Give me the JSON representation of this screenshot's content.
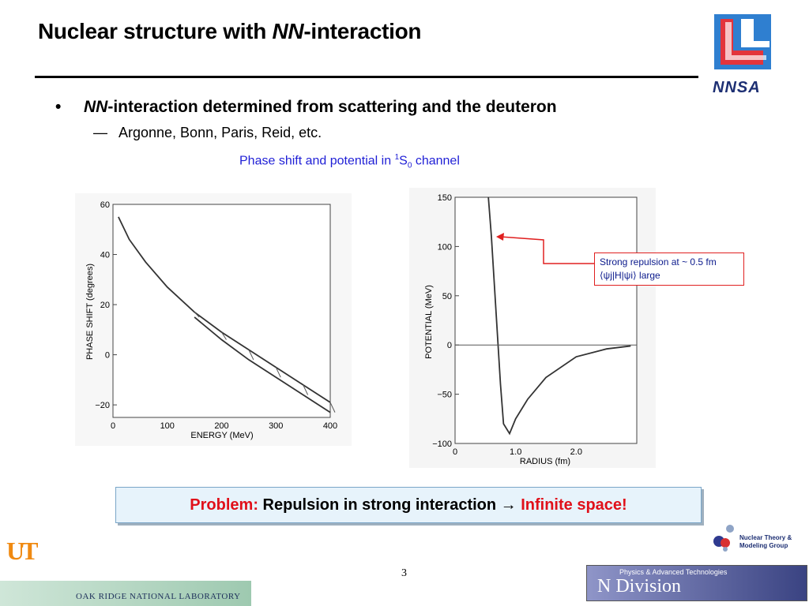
{
  "slide": {
    "title_pre": "Nuclear structure with ",
    "title_em": "NN",
    "title_post": "-interaction",
    "bullet_marker": "•",
    "bullet_em": "NN",
    "bullet_text": "-interaction determined from scattering and the deuteron",
    "sub_marker": "—",
    "sub_text": "Argonne, Bonn, Paris, Reid, etc.",
    "caption_pre": "Phase shift and potential in ",
    "caption_sup": "1",
    "caption_mid": "S",
    "caption_sub": "0",
    "caption_post": " channel",
    "callout_line1": "Strong repulsion at ~ 0.5 fm",
    "callout_line2": "⟨ψj|H|ψi⟩ large",
    "problem_label": "Problem:",
    "problem_text": " Repulsion in strong interaction ",
    "problem_arrow": "→",
    "problem_result": " Infinite space!",
    "page_number": "3"
  },
  "logos": {
    "nnsa": "NNSA",
    "ut": "UT",
    "ornl": "OAK RIDGE NATIONAL LABORATORY",
    "nuclear_theory_1": "Nuclear Theory &",
    "nuclear_theory_2": "Modeling Group",
    "physics_division_top": "Physics & Advanced Technologies",
    "physics_division_main": "N Division"
  },
  "chart_data": [
    {
      "type": "line",
      "xlabel": "ENERGY (MeV)",
      "ylabel": "PHASE SHIFT (degrees)",
      "xlim": [
        0,
        400
      ],
      "ylim": [
        -25,
        60
      ],
      "xticks": [
        "0",
        "100",
        "200",
        "300",
        "400"
      ],
      "yticks": [
        "60",
        "40",
        "20",
        "0",
        "−20"
      ],
      "series": [
        {
          "x": [
            10,
            30,
            60,
            100,
            150,
            200,
            250,
            300,
            350,
            400
          ],
          "values": [
            55,
            46,
            37,
            27,
            17,
            9,
            2,
            -5,
            -12,
            -19
          ]
        },
        {
          "x": [
            150,
            200,
            250,
            300,
            350,
            400
          ],
          "values": [
            15,
            6,
            -2,
            -9,
            -16,
            -23
          ]
        }
      ]
    },
    {
      "type": "line",
      "xlabel": "RADIUS (fm)",
      "ylabel": "POTENTIAL (MeV)",
      "xlim": [
        0,
        3
      ],
      "ylim": [
        -100,
        150
      ],
      "xticks": [
        "0",
        "1.0",
        "2.0"
      ],
      "yticks": [
        "150",
        "100",
        "50",
        "0",
        "−50",
        "−100"
      ],
      "series": [
        {
          "x": [
            0.55,
            0.6,
            0.65,
            0.7,
            0.75,
            0.8,
            0.9,
            1.0,
            1.2,
            1.5,
            2.0,
            2.5,
            2.9
          ],
          "values": [
            150,
            110,
            60,
            10,
            -40,
            -80,
            -90,
            -75,
            -55,
            -33,
            -12,
            -4,
            -1
          ]
        }
      ]
    }
  ]
}
